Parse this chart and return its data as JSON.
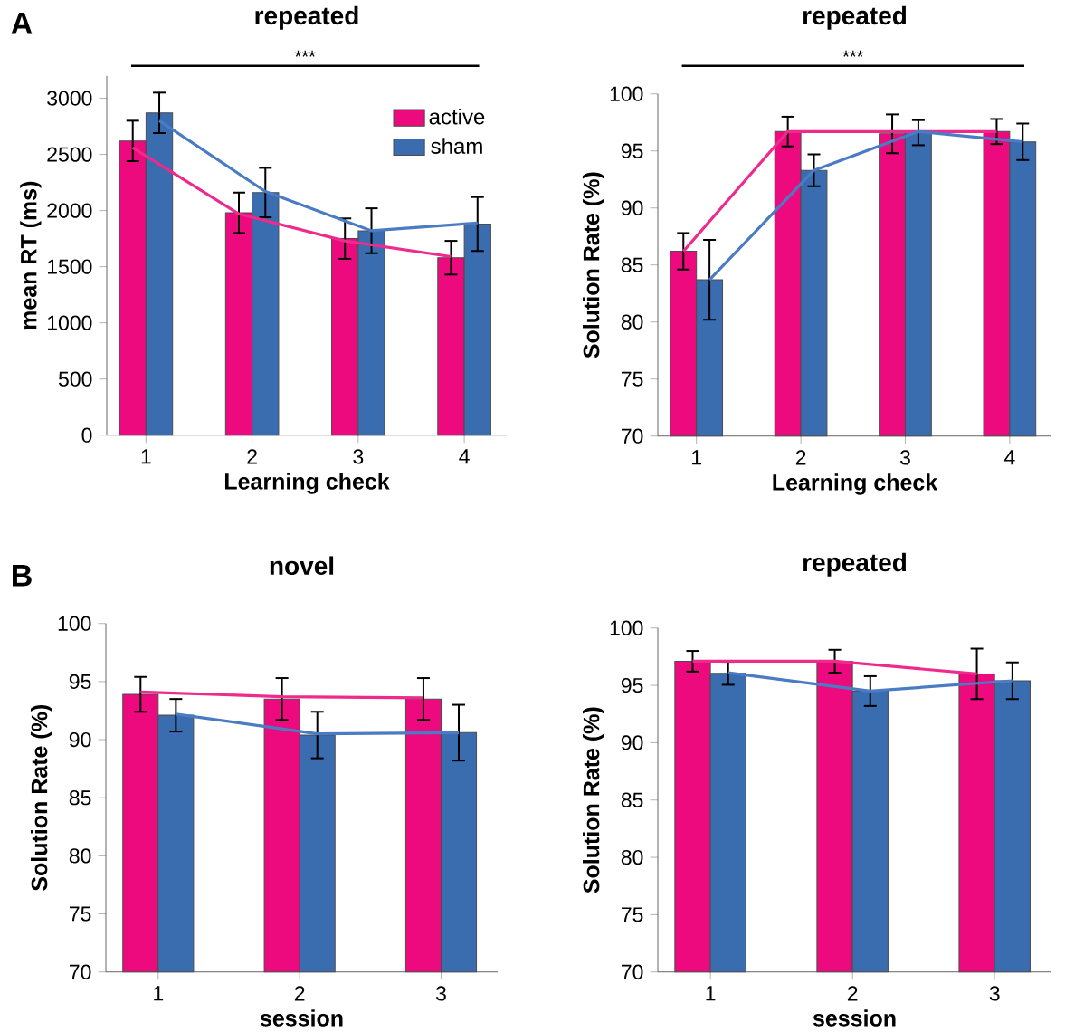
{
  "chart_data": [
    {
      "type": "bar",
      "title": "repeated",
      "xlabel": "Learning check",
      "ylabel": "mean RT (ms)",
      "categories": [
        "1",
        "2",
        "3",
        "4"
      ],
      "series": [
        {
          "name": "active",
          "color": "#ec0a7e",
          "values": [
            2620,
            1980,
            1750,
            1580
          ],
          "errors": [
            180,
            180,
            180,
            150
          ]
        },
        {
          "name": "sham",
          "color": "#3a6cb0",
          "values": [
            2870,
            2160,
            1820,
            1880
          ],
          "errors": [
            180,
            220,
            200,
            240
          ]
        },
        {
          "type": "line",
          "color": "#ee2a8c",
          "values": [
            2560,
            1970,
            1730,
            1590
          ]
        },
        {
          "type": "line",
          "color": "#4a7cc4",
          "values": [
            2800,
            2170,
            1820,
            1890
          ]
        }
      ],
      "ylim": [
        0,
        3200
      ],
      "yticks": [
        0,
        500,
        1000,
        1500,
        2000,
        2500,
        3000
      ],
      "legend": "top right",
      "annotations": [
        "A",
        {
          "text": "***"
        }
      ]
    },
    {
      "type": "bar",
      "title": "repeated",
      "xlabel": "Learning check",
      "ylabel": "Solution Rate (%)",
      "categories": [
        "1",
        "2",
        "3",
        "4"
      ],
      "series": [
        {
          "color": "#ec0a7e",
          "values": [
            86.2,
            96.7,
            96.5,
            96.7
          ],
          "errors": [
            1.6,
            1.3,
            1.7,
            1.1
          ]
        },
        {
          "color": "#3a6cb0",
          "values": [
            83.7,
            93.3,
            96.6,
            95.8
          ],
          "errors": [
            3.5,
            1.4,
            1.1,
            1.6
          ]
        },
        {
          "type": "line",
          "color": "#ee2a8c",
          "values": [
            86.2,
            96.7,
            96.7,
            96.7
          ]
        },
        {
          "type": "line",
          "color": "#4a7cc4",
          "values": [
            83.7,
            93.3,
            96.7,
            95.8
          ]
        }
      ],
      "ylim": [
        70,
        100
      ],
      "yticks": [
        70,
        75,
        80,
        85,
        90,
        95,
        100
      ],
      "annotations": [
        {
          "text": "***"
        }
      ]
    },
    {
      "type": "bar",
      "title": "novel",
      "xlabel": "session",
      "ylabel": "Solution Rate (%)",
      "categories": [
        "1",
        "2",
        "3"
      ],
      "series": [
        {
          "color": "#ec0a7e",
          "values": [
            93.9,
            93.5,
            93.5
          ],
          "errors": [
            1.5,
            1.8,
            1.8
          ]
        },
        {
          "color": "#3a6cb0",
          "values": [
            92.1,
            90.4,
            90.6
          ],
          "errors": [
            1.4,
            2.0,
            2.4
          ]
        },
        {
          "type": "line",
          "color": "#ee2a8c",
          "values": [
            94.1,
            93.7,
            93.6
          ]
        },
        {
          "type": "line",
          "color": "#4a7cc4",
          "values": [
            92.2,
            90.5,
            90.6
          ]
        }
      ],
      "ylim": [
        70,
        100
      ],
      "yticks": [
        70,
        75,
        80,
        85,
        90,
        95,
        100
      ],
      "annotations": [
        "B"
      ]
    },
    {
      "type": "bar",
      "title": "repeated",
      "xlabel": "session",
      "ylabel": "Solution Rate (%)",
      "categories": [
        "1",
        "2",
        "3"
      ],
      "series": [
        {
          "color": "#ec0a7e",
          "values": [
            97.1,
            97.1,
            96.0
          ],
          "errors": [
            0.9,
            1.0,
            2.2
          ]
        },
        {
          "color": "#3a6cb0",
          "values": [
            96.05,
            94.5,
            95.4
          ],
          "errors": [
            1.0,
            1.3,
            1.6
          ]
        },
        {
          "type": "line",
          "color": "#ee2a8c",
          "values": [
            97.1,
            97.1,
            96.0
          ]
        },
        {
          "type": "line",
          "color": "#4a7cc4",
          "values": [
            96.1,
            94.5,
            95.4
          ]
        }
      ],
      "ylim": [
        70,
        100
      ],
      "yticks": [
        70,
        75,
        80,
        85,
        90,
        95,
        100
      ]
    }
  ]
}
